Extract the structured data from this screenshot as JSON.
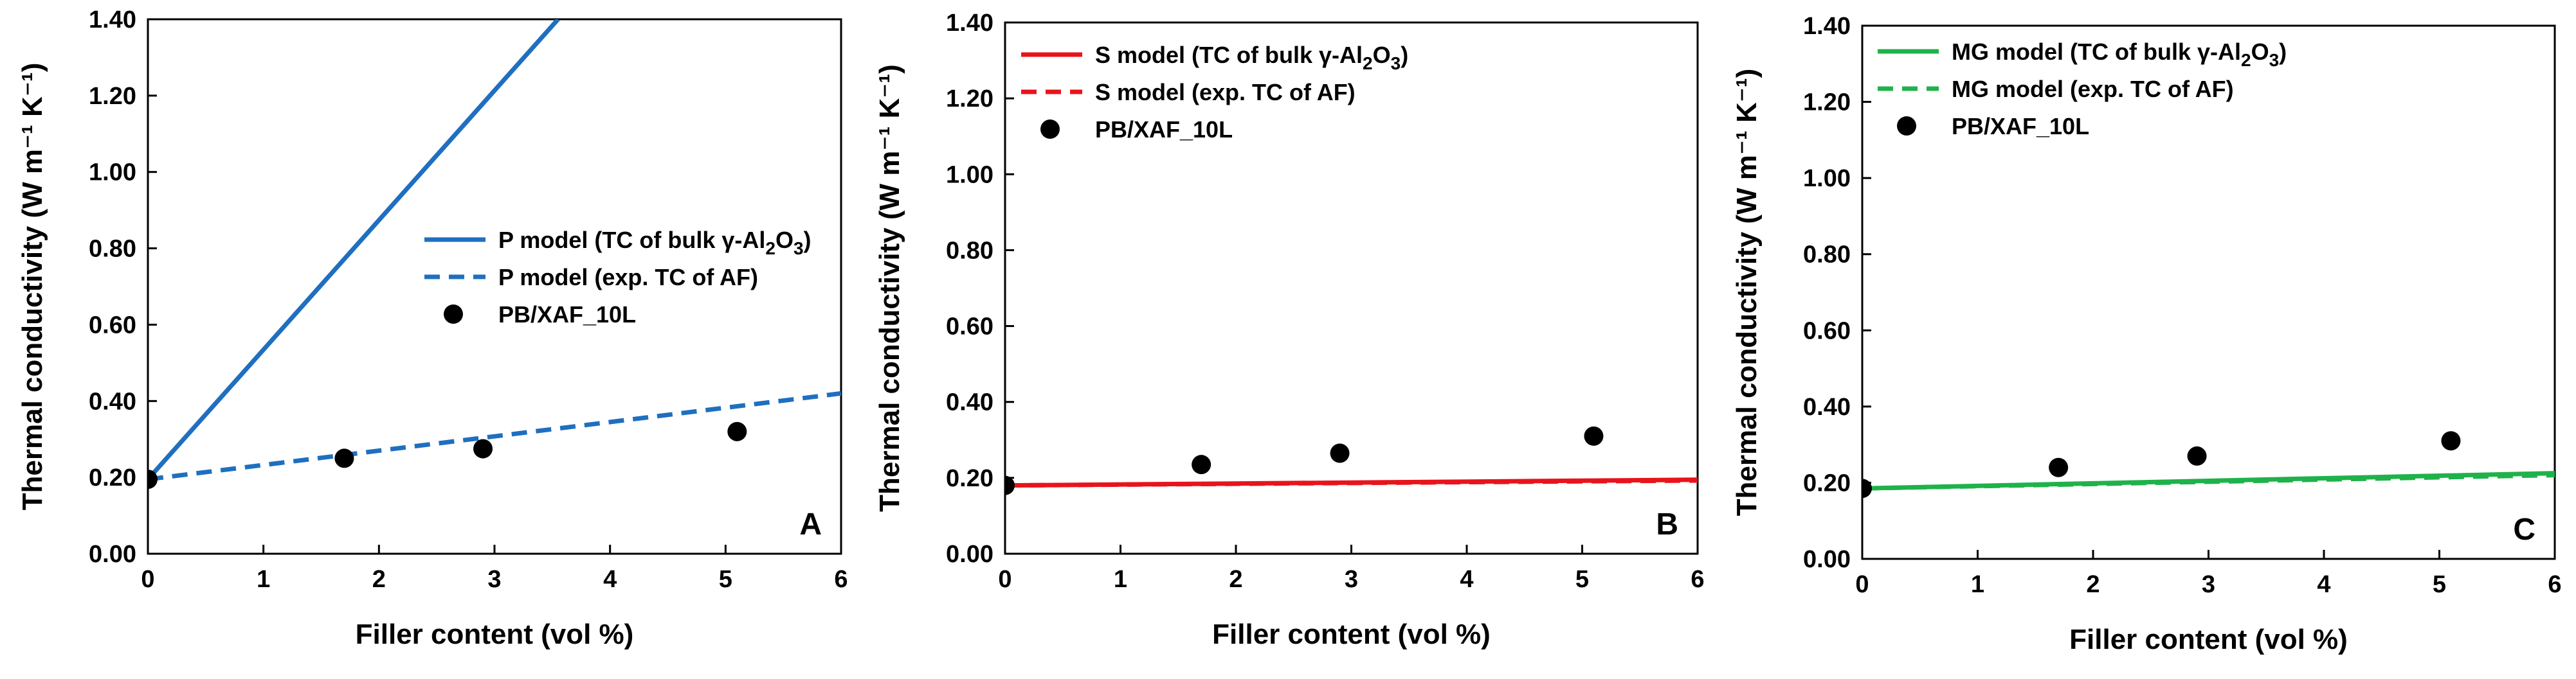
{
  "chart_data": [
    {
      "type": "line",
      "panel_label": "A",
      "xlabel": "Filler content (vol %)",
      "ylabel": "Thermal conductivity (W m⁻¹ K⁻¹)",
      "xlim": [
        0,
        6
      ],
      "ylim": [
        0,
        1.4
      ],
      "x_ticks": [
        "0",
        "1",
        "2",
        "3",
        "4",
        "5",
        "6"
      ],
      "y_ticks": [
        "0.00",
        "0.20",
        "0.40",
        "0.60",
        "0.80",
        "1.00",
        "1.20",
        "1.40"
      ],
      "legend_position": "center-right",
      "series": [
        {
          "name": "P model (TC of bulk γ-Al2O3)",
          "style": "solid",
          "color": "#1f6fc0",
          "x": [
            0,
            3.55
          ],
          "y": [
            0.195,
            1.4
          ]
        },
        {
          "name": "P model (exp. TC of AF)",
          "style": "dashed",
          "color": "#1f6fc0",
          "x": [
            0,
            6
          ],
          "y": [
            0.195,
            0.42
          ]
        },
        {
          "name": "PB/XAF_10L",
          "style": "marker",
          "color": "#000000",
          "x": [
            0,
            1.7,
            2.9,
            5.1
          ],
          "y": [
            0.195,
            0.25,
            0.275,
            0.32
          ]
        }
      ]
    },
    {
      "type": "line",
      "panel_label": "B",
      "xlabel": "Filler content (vol %)",
      "ylabel": "Thermal conductivity (W m⁻¹ K⁻¹)",
      "xlim": [
        0,
        6
      ],
      "ylim": [
        0,
        1.4
      ],
      "x_ticks": [
        "0",
        "1",
        "2",
        "3",
        "4",
        "5",
        "6"
      ],
      "y_ticks": [
        "0.00",
        "0.20",
        "0.40",
        "0.60",
        "0.80",
        "1.00",
        "1.20",
        "1.40"
      ],
      "legend_position": "top-left",
      "series": [
        {
          "name": "S model (TC of bulk γ-Al2O3)",
          "style": "solid",
          "color": "#e8141c",
          "x": [
            0,
            6
          ],
          "y": [
            0.18,
            0.195
          ]
        },
        {
          "name": "S model (exp. TC of AF)",
          "style": "dashed",
          "color": "#e8141c",
          "x": [
            0,
            6
          ],
          "y": [
            0.18,
            0.193
          ]
        },
        {
          "name": "PB/XAF_10L",
          "style": "marker",
          "color": "#000000",
          "x": [
            0,
            1.7,
            2.9,
            5.1
          ],
          "y": [
            0.18,
            0.235,
            0.265,
            0.31
          ]
        }
      ]
    },
    {
      "type": "line",
      "panel_label": "C",
      "xlabel": "Filler content (vol %)",
      "ylabel": "Thermal conductivity (W m⁻¹ K⁻¹)",
      "xlim": [
        0,
        6
      ],
      "ylim": [
        0,
        1.4
      ],
      "x_ticks": [
        "0",
        "1",
        "2",
        "3",
        "4",
        "5",
        "6"
      ],
      "y_ticks": [
        "0.00",
        "0.20",
        "0.40",
        "0.60",
        "0.80",
        "1.00",
        "1.20",
        "1.40"
      ],
      "legend_position": "top-left",
      "series": [
        {
          "name": "MG model (TC of bulk γ-Al2O3)",
          "style": "solid",
          "color": "#1fb24a",
          "x": [
            0,
            6
          ],
          "y": [
            0.185,
            0.225
          ]
        },
        {
          "name": "MG model (exp. TC of AF)",
          "style": "dashed",
          "color": "#1fb24a",
          "x": [
            0,
            6
          ],
          "y": [
            0.185,
            0.22
          ]
        },
        {
          "name": "PB/XAF_10L",
          "style": "marker",
          "color": "#000000",
          "x": [
            0,
            1.7,
            2.9,
            5.1
          ],
          "y": [
            0.185,
            0.24,
            0.27,
            0.31
          ]
        }
      ]
    }
  ]
}
